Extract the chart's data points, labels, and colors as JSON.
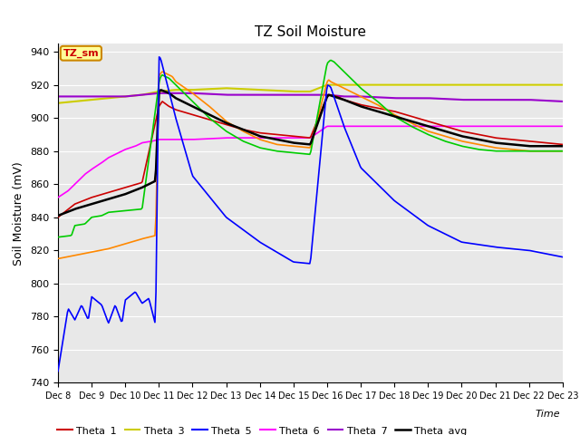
{
  "title": "TZ Soil Moisture",
  "ylabel": "Soil Moisture (mV)",
  "xlabel": "Time",
  "ylim": [
    740,
    945
  ],
  "colors": {
    "Theta_1": "#cc0000",
    "Theta_2": "#ff8800",
    "Theta_3": "#cccc00",
    "Theta_4": "#00cc00",
    "Theta_5": "#0000ff",
    "Theta_6": "#ff00ff",
    "Theta_7": "#9900cc",
    "Theta_avg": "#000000"
  },
  "legend_box": {
    "text": "TZ_sm",
    "facecolor": "#ffff99",
    "edgecolor": "#cc8800",
    "textcolor": "#cc0000"
  },
  "background_color": "#e8e8e8",
  "grid_color": "#ffffff",
  "tick_labels": [
    "Dec 8",
    "Dec 9",
    "Dec 10",
    "Dec 11",
    "Dec 12",
    "Dec 13",
    "Dec 14",
    "Dec 15",
    "Dec 16",
    "Dec 17",
    "Dec 18",
    "Dec 19",
    "Dec 20",
    "Dec 21",
    "Dec 22",
    "Dec 23"
  ],
  "yticks": [
    740,
    760,
    780,
    800,
    820,
    840,
    860,
    880,
    900,
    920,
    940
  ],
  "n_days": 16,
  "n_points": 480
}
